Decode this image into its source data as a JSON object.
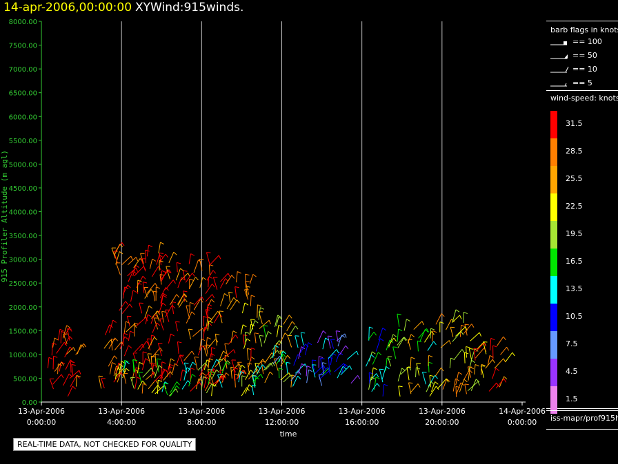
{
  "header": {
    "date": "14-apr-2006,00:00:00",
    "product": "XYWind:915winds."
  },
  "chart_data": {
    "type": "scatter",
    "title": "XYWind:915winds.",
    "xlabel": "time",
    "ylabel": "915 Profiler Altitude (m agl)",
    "ylim": [
      0,
      8000
    ],
    "yticks": [
      "0.00",
      "500.00",
      "1000.00",
      "1500.00",
      "2000.00",
      "2500.00",
      "3000.00",
      "3500.00",
      "4000.00",
      "4500.00",
      "5000.00",
      "5500.00",
      "6000.00",
      "6500.00",
      "7000.00",
      "7500.00",
      "8000.00"
    ],
    "xlim_hours": [
      0,
      24
    ],
    "xticks": [
      {
        "hour": 0,
        "date": "13-Apr-2006",
        "time": "0:00:00"
      },
      {
        "hour": 4,
        "date": "13-Apr-2006",
        "time": "4:00:00"
      },
      {
        "hour": 8,
        "date": "13-Apr-2006",
        "time": "8:00:00"
      },
      {
        "hour": 12,
        "date": "13-Apr-2006",
        "time": "12:00:00"
      },
      {
        "hour": 16,
        "date": "13-Apr-2006",
        "time": "16:00:00"
      },
      {
        "hour": 20,
        "date": "13-Apr-2006",
        "time": "20:00:00"
      },
      {
        "hour": 24,
        "date": "14-Apr-2006",
        "time": "0:00:00"
      }
    ],
    "grid": "vertical lines at x ticks",
    "wind_clusters": [
      {
        "t0": 0.1,
        "t1": 2.1,
        "h0": 100,
        "h1": 1400,
        "speed": 31
      },
      {
        "t0": 2.9,
        "t1": 3.8,
        "h0": 100,
        "h1": 1500,
        "speed": 29
      },
      {
        "t0": 3.6,
        "t1": 6.0,
        "h0": 100,
        "h1": 3200,
        "speed": 31
      },
      {
        "t0": 5.8,
        "t1": 8.5,
        "h0": 200,
        "h1": 3000,
        "speed": 30
      },
      {
        "t0": 8.3,
        "t1": 10.5,
        "h0": 300,
        "h1": 2600,
        "speed": 27
      },
      {
        "t0": 10.0,
        "t1": 12.5,
        "h0": 300,
        "h1": 1800,
        "speed": 22
      },
      {
        "t0": 3.8,
        "t1": 11.0,
        "h0": 100,
        "h1": 700,
        "speed": 18
      },
      {
        "t0": 11.5,
        "t1": 15.5,
        "h0": 300,
        "h1": 1300,
        "speed": 10
      },
      {
        "t0": 16.2,
        "t1": 17.8,
        "h0": 100,
        "h1": 1500,
        "speed": 16
      },
      {
        "t0": 17.8,
        "t1": 19.5,
        "h0": 100,
        "h1": 1600,
        "speed": 20
      },
      {
        "t0": 19.5,
        "t1": 21.5,
        "h0": 100,
        "h1": 1700,
        "speed": 24
      },
      {
        "t0": 21.5,
        "t1": 23.3,
        "h0": 200,
        "h1": 1200,
        "speed": 28
      }
    ]
  },
  "legend": {
    "barb_title": "barb flags in knots",
    "barbs": [
      {
        "kind": "flag",
        "label": "== 100"
      },
      {
        "kind": "triangle",
        "label": "== 50"
      },
      {
        "kind": "full",
        "label": "== 10"
      },
      {
        "kind": "half",
        "label": "== 5"
      }
    ],
    "speed_title": "wind-speed: knots",
    "speed_scale": [
      {
        "label": "31.5",
        "color": "#ff0000"
      },
      {
        "label": "28.5",
        "color": "#ff7f00"
      },
      {
        "label": "25.5",
        "color": "#ffa500"
      },
      {
        "label": "22.5",
        "color": "#ffff00"
      },
      {
        "label": "19.5",
        "color": "#a6e633"
      },
      {
        "label": "16.5",
        "color": "#00e600"
      },
      {
        "label": "13.5",
        "color": "#00ffff"
      },
      {
        "label": "10.5",
        "color": "#0000ff"
      },
      {
        "label": "7.5",
        "color": "#6699ff"
      },
      {
        "label": "4.5",
        "color": "#9933ff"
      },
      {
        "label": "1.5",
        "color": "#ee82ee"
      }
    ]
  },
  "footer": {
    "source": "iss-mapr/prof915h",
    "notice": "REAL-TIME DATA, NOT CHECKED FOR QUALITY"
  },
  "colors": {
    "axis": "#33cc33",
    "grid": "#c0c0c0",
    "title_date": "#ffff00"
  }
}
